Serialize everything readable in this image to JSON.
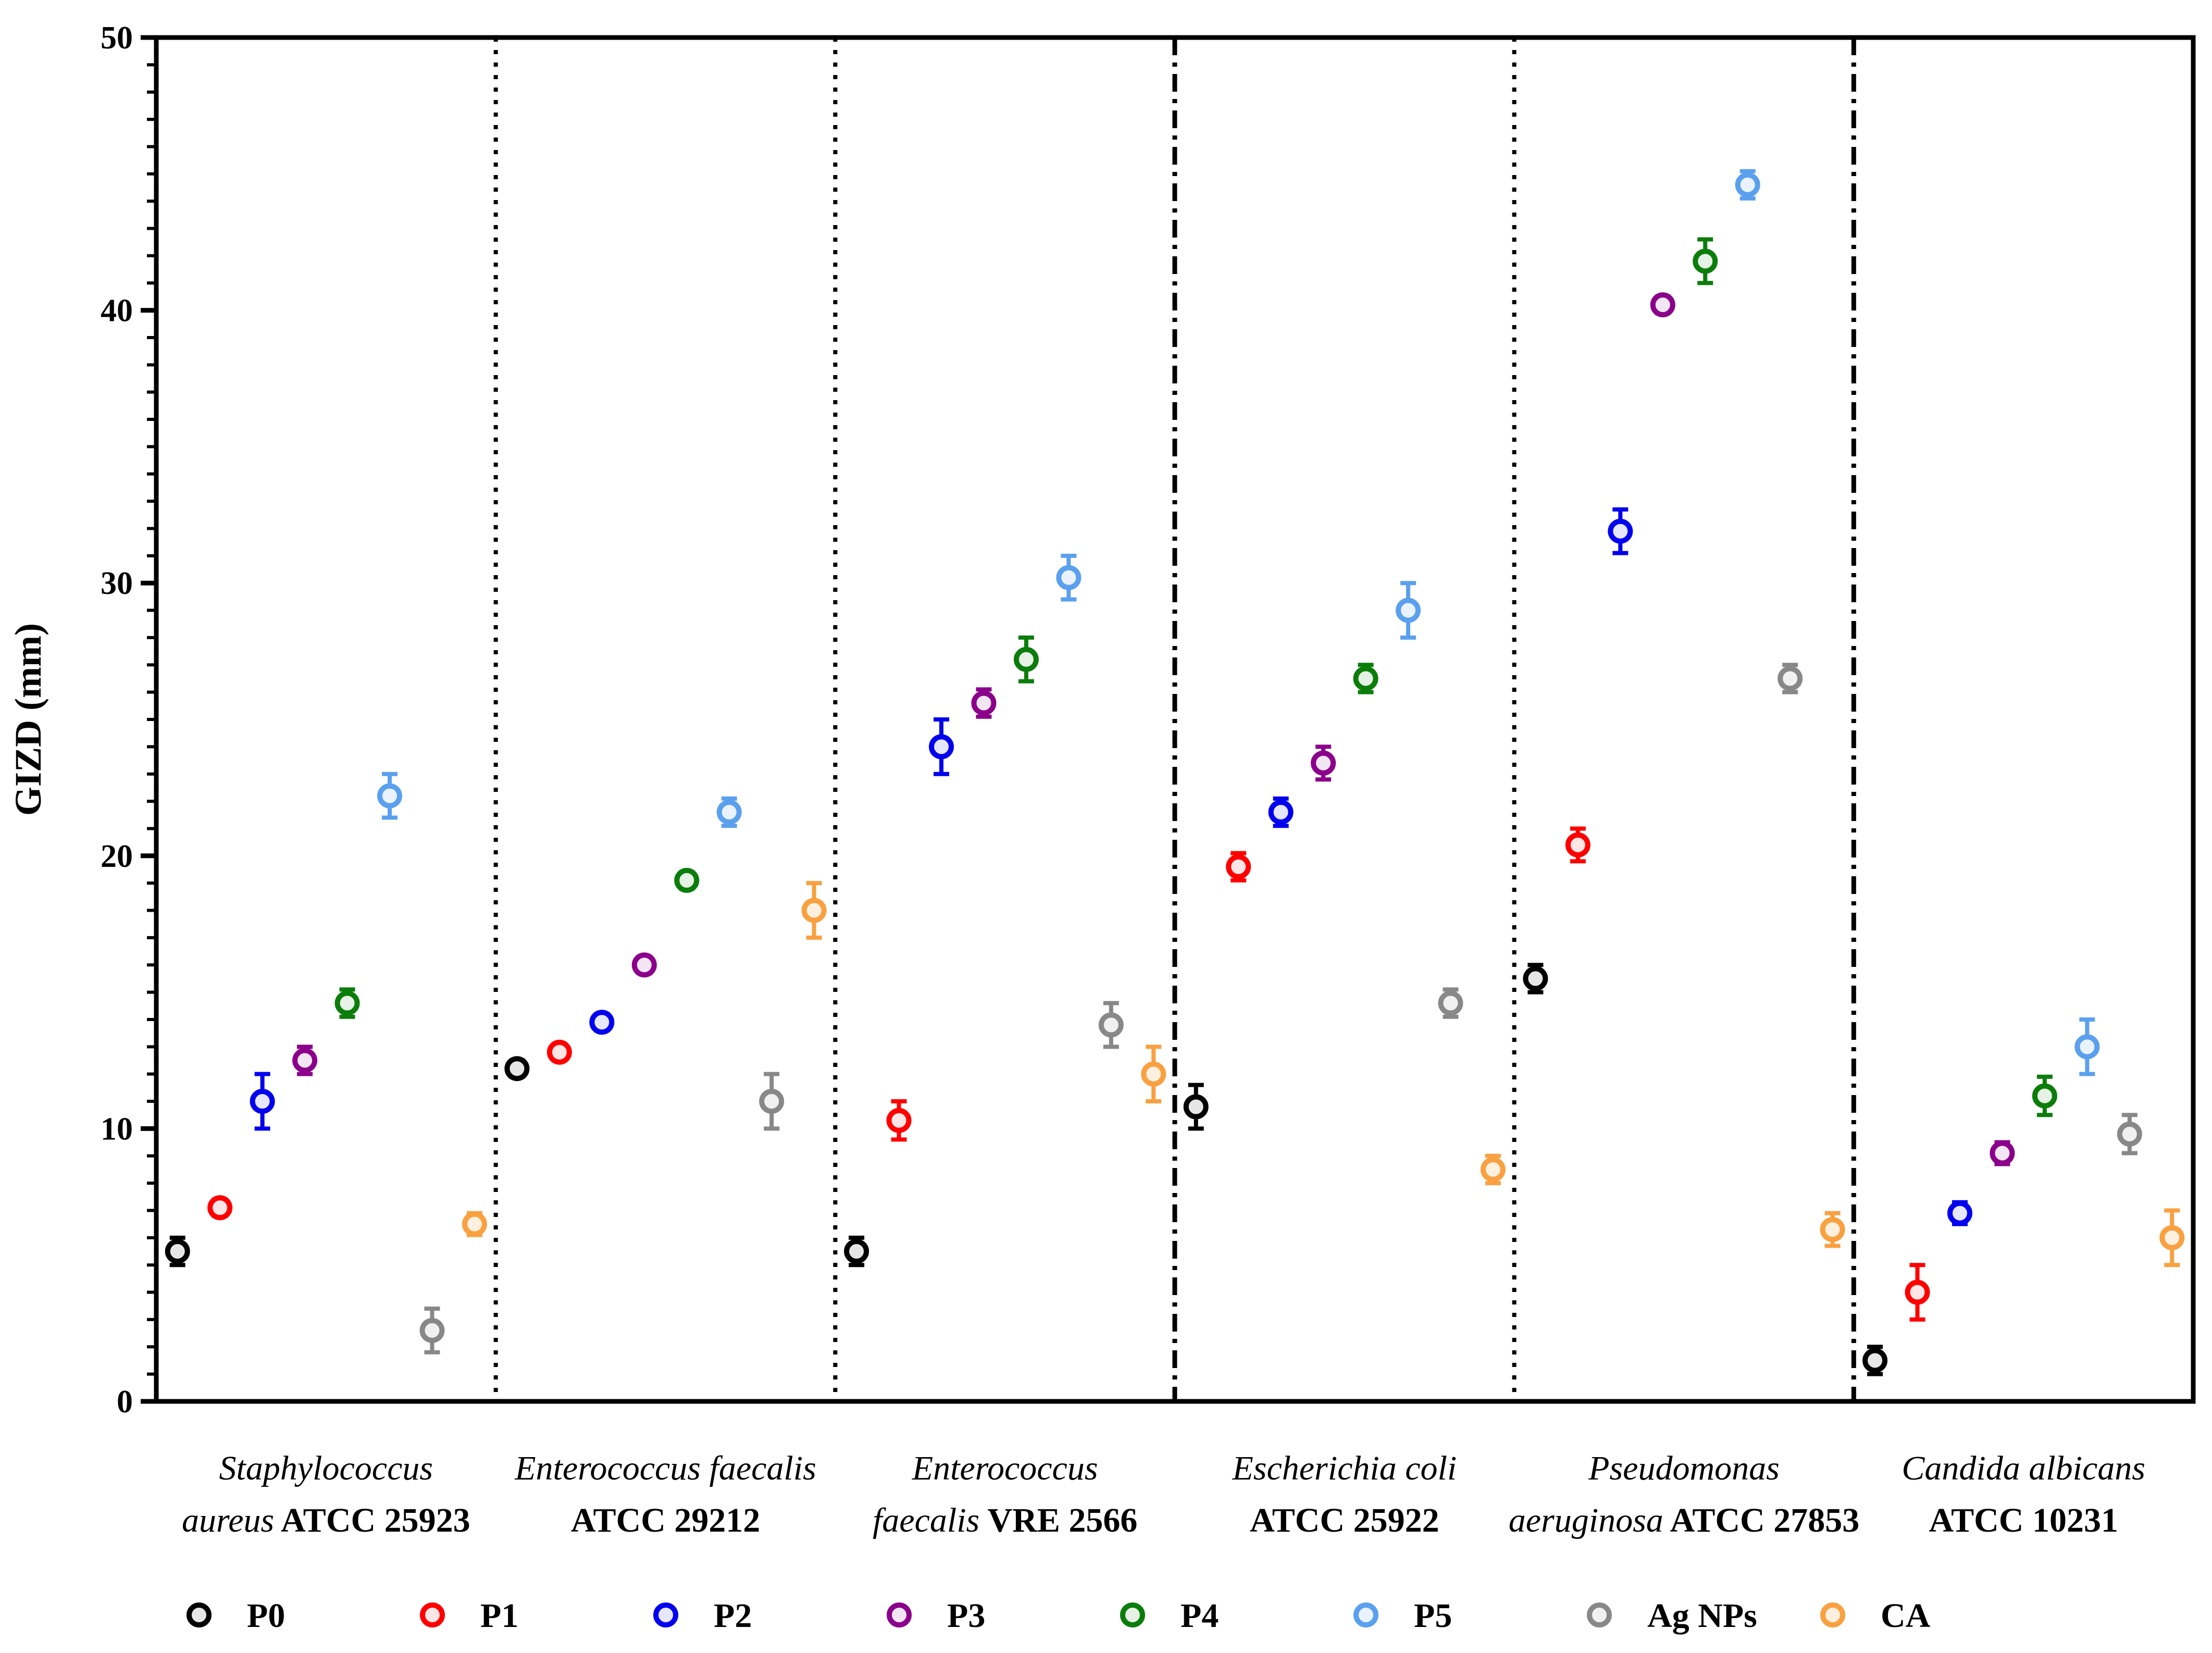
{
  "chart_data": {
    "type": "scatter",
    "title": "",
    "xlabel": "",
    "ylabel": "GIZD (mm)",
    "ylim": [
      0,
      50
    ],
    "yticks": [
      0,
      10,
      20,
      30,
      40,
      50
    ],
    "y_minor_step": 1,
    "grid": false,
    "legend_position": "bottom",
    "categories": [
      {
        "lines": [
          [
            {
              "text": "Staphylococcus",
              "italic": true
            }
          ],
          [
            {
              "text": "aureus",
              "italic": true
            },
            {
              "text": " ATCC 25923",
              "italic": false
            }
          ]
        ]
      },
      {
        "lines": [
          [
            {
              "text": "Enterococcus faecalis",
              "italic": true
            }
          ],
          [
            {
              "text": "ATCC 29212",
              "italic": false
            }
          ]
        ]
      },
      {
        "lines": [
          [
            {
              "text": "Enterococcus",
              "italic": true
            }
          ],
          [
            {
              "text": "faecalis",
              "italic": true
            },
            {
              "text": " VRE 2566",
              "italic": false
            }
          ]
        ]
      },
      {
        "lines": [
          [
            {
              "text": "Escherichia coli",
              "italic": true
            }
          ],
          [
            {
              "text": "ATCC 25922",
              "italic": false
            }
          ]
        ]
      },
      {
        "lines": [
          [
            {
              "text": "Pseudomonas",
              "italic": true
            }
          ],
          [
            {
              "text": "aeruginosa",
              "italic": true
            },
            {
              "text": " ATCC 27853",
              "italic": false
            }
          ]
        ]
      },
      {
        "lines": [
          [
            {
              "text": "Candida albicans",
              "italic": true
            }
          ],
          [
            {
              "text": "ATCC 10231",
              "italic": false
            }
          ]
        ]
      }
    ],
    "separators": [
      "dotted",
      "dotted",
      "dashed",
      "dotted",
      "dashed"
    ],
    "series": [
      {
        "name": "P0",
        "color": "#000000",
        "fill": "#e6e6e6",
        "values": [
          5.5,
          12.2,
          5.5,
          10.8,
          15.5,
          1.5
        ],
        "errors": [
          0.5,
          0.3,
          0.5,
          0.8,
          0.5,
          0.5
        ]
      },
      {
        "name": "P1",
        "color": "#ff0000",
        "fill": "#ffe6e6",
        "values": [
          7.1,
          12.8,
          10.3,
          19.6,
          20.4,
          4.0
        ],
        "errors": [
          0.3,
          0.3,
          0.7,
          0.5,
          0.6,
          1.0
        ]
      },
      {
        "name": "P2",
        "color": "#0000ee",
        "fill": "#e6e6ff",
        "values": [
          11.0,
          13.9,
          24.0,
          21.6,
          31.9,
          6.9
        ],
        "errors": [
          1.0,
          0.3,
          1.0,
          0.5,
          0.8,
          0.4
        ]
      },
      {
        "name": "P3",
        "color": "#8b008b",
        "fill": "#f3e6f3",
        "values": [
          12.5,
          16.0,
          25.6,
          23.4,
          40.2,
          9.1
        ],
        "errors": [
          0.5,
          0.3,
          0.5,
          0.6,
          0.3,
          0.4
        ]
      },
      {
        "name": "P4",
        "color": "#0b7d0b",
        "fill": "#e6f2e6",
        "values": [
          14.6,
          19.1,
          27.2,
          26.5,
          41.8,
          11.2
        ],
        "errors": [
          0.5,
          0.3,
          0.8,
          0.5,
          0.8,
          0.7
        ]
      },
      {
        "name": "P5",
        "color": "#5aa0ee",
        "fill": "#eaf2fd",
        "values": [
          22.2,
          21.6,
          30.2,
          29.0,
          44.6,
          13.0
        ],
        "errors": [
          0.8,
          0.5,
          0.8,
          1.0,
          0.5,
          1.0
        ]
      },
      {
        "name": "Ag NPs",
        "color": "#888888",
        "fill": "#f0f0f0",
        "values": [
          2.6,
          11.0,
          13.8,
          14.6,
          26.5,
          9.8
        ],
        "errors": [
          0.8,
          1.0,
          0.8,
          0.5,
          0.5,
          0.7
        ]
      },
      {
        "name": "CA",
        "color": "#f9a040",
        "fill": "#fef0df",
        "values": [
          6.5,
          18.0,
          12.0,
          8.5,
          6.3,
          6.0
        ],
        "errors": [
          0.4,
          1.0,
          1.0,
          0.5,
          0.6,
          1.0
        ]
      }
    ]
  }
}
